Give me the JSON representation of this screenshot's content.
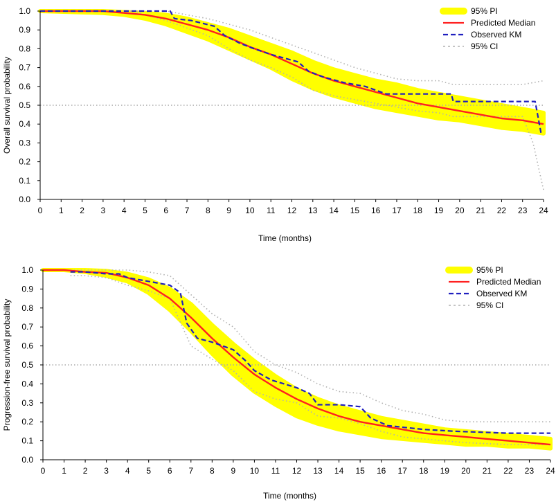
{
  "chart_data": [
    {
      "type": "line",
      "id": "os",
      "xlabel": "Time (months)",
      "ylabel": "Overall survival probability",
      "xlim": [
        0,
        24
      ],
      "ylim": [
        0,
        1
      ],
      "xticks": [
        "0",
        "1",
        "2",
        "3",
        "4",
        "5",
        "6",
        "7",
        "8",
        "9",
        "10",
        "11",
        "12",
        "13",
        "14",
        "15",
        "16",
        "17",
        "18",
        "19",
        "20",
        "21",
        "22",
        "23",
        "24"
      ],
      "yticks": [
        "0.0",
        "0.1",
        "0.2",
        "0.3",
        "0.4",
        "0.5",
        "0.6",
        "0.7",
        "0.8",
        "0.9",
        "1.0"
      ],
      "reference_line_y": 0.5,
      "legend": [
        "95% PI",
        "Predicted Median",
        "Observed KM",
        "95% CI"
      ],
      "colors": {
        "pi": "#ffff00",
        "median": "#ff2020",
        "km": "#1f1fbf",
        "ci": "#b0b0b0",
        "ref": "#a8a8a8"
      },
      "series": [
        {
          "name": "95% PI",
          "x": [
            0,
            3,
            4,
            5,
            6,
            7,
            8,
            9,
            10,
            11,
            12,
            13,
            14,
            15,
            16,
            17,
            18,
            19,
            20,
            21,
            22,
            23,
            24
          ],
          "lower": [
            1.0,
            0.99,
            0.98,
            0.96,
            0.93,
            0.89,
            0.85,
            0.8,
            0.75,
            0.7,
            0.64,
            0.59,
            0.55,
            0.52,
            0.49,
            0.47,
            0.45,
            0.43,
            0.42,
            0.4,
            0.38,
            0.37,
            0.35
          ],
          "upper": [
            1.0,
            1.0,
            0.995,
            0.99,
            0.98,
            0.96,
            0.93,
            0.9,
            0.86,
            0.82,
            0.78,
            0.73,
            0.69,
            0.66,
            0.63,
            0.61,
            0.58,
            0.56,
            0.54,
            0.52,
            0.5,
            0.48,
            0.46
          ]
        },
        {
          "name": "Predicted Median",
          "x": [
            0,
            3,
            4,
            5,
            6,
            7,
            8,
            9,
            10,
            11,
            12,
            13,
            14,
            15,
            16,
            17,
            18,
            19,
            20,
            21,
            22,
            23,
            24
          ],
          "y": [
            1.0,
            1.0,
            0.99,
            0.98,
            0.96,
            0.93,
            0.9,
            0.86,
            0.81,
            0.77,
            0.72,
            0.67,
            0.63,
            0.6,
            0.57,
            0.54,
            0.51,
            0.49,
            0.47,
            0.45,
            0.43,
            0.42,
            0.4
          ]
        },
        {
          "name": "Observed KM",
          "x": [
            0,
            4.8,
            6.2,
            6.4,
            7.2,
            8.3,
            8.8,
            9.5,
            10.2,
            11,
            12.3,
            12.8,
            13.5,
            14.5,
            15.5,
            16.5,
            19.6,
            19.7,
            23.6,
            23.9
          ],
          "y": [
            1.0,
            1.0,
            1.0,
            0.96,
            0.95,
            0.92,
            0.87,
            0.83,
            0.8,
            0.77,
            0.73,
            0.68,
            0.65,
            0.62,
            0.6,
            0.56,
            0.56,
            0.52,
            0.52,
            0.34
          ]
        },
        {
          "name": "95% CI upper",
          "x": [
            0,
            4.5,
            5,
            6,
            7,
            8,
            9,
            10,
            11,
            12,
            13,
            14,
            15,
            16,
            17,
            18,
            19,
            19.7,
            21,
            23,
            24
          ],
          "y": [
            1.0,
            1.0,
            1.0,
            1.0,
            0.98,
            0.96,
            0.93,
            0.9,
            0.86,
            0.82,
            0.78,
            0.74,
            0.7,
            0.67,
            0.64,
            0.63,
            0.63,
            0.61,
            0.61,
            0.61,
            0.63
          ]
        },
        {
          "name": "95% CI lower",
          "x": [
            0,
            4.5,
            5,
            6,
            7,
            8,
            9,
            10,
            11,
            12,
            13,
            14,
            15,
            16,
            17,
            18,
            19,
            19.7,
            21,
            23,
            23.5,
            24
          ],
          "y": [
            1.0,
            1.0,
            0.98,
            0.95,
            0.91,
            0.87,
            0.8,
            0.74,
            0.7,
            0.65,
            0.58,
            0.55,
            0.53,
            0.51,
            0.49,
            0.47,
            0.46,
            0.44,
            0.44,
            0.44,
            0.3,
            0.05
          ]
        }
      ]
    },
    {
      "type": "line",
      "id": "pfs",
      "xlabel": "Time (months)",
      "ylabel": "Progression-free survival probability",
      "xlim": [
        0,
        24
      ],
      "ylim": [
        0,
        1
      ],
      "xticks": [
        "0",
        "1",
        "2",
        "3",
        "4",
        "5",
        "6",
        "7",
        "8",
        "9",
        "10",
        "11",
        "12",
        "13",
        "14",
        "15",
        "16",
        "17",
        "18",
        "19",
        "20",
        "21",
        "22",
        "23",
        "24"
      ],
      "yticks": [
        "0.0",
        "0.1",
        "0.2",
        "0.3",
        "0.4",
        "0.5",
        "0.6",
        "0.7",
        "0.8",
        "0.9",
        "1.0"
      ],
      "reference_line_y": 0.5,
      "legend": [
        "95% PI",
        "Predicted Median",
        "Observed KM",
        "95% CI"
      ],
      "colors": {
        "pi": "#ffff00",
        "median": "#ff2020",
        "km": "#1f1fbf",
        "ci": "#b0b0b0",
        "ref": "#a8a8a8"
      },
      "series": [
        {
          "name": "95% PI",
          "x": [
            0,
            1,
            2,
            3,
            4,
            5,
            6,
            7,
            8,
            9,
            10,
            11,
            12,
            13,
            14,
            15,
            16,
            17,
            18,
            19,
            20,
            21,
            22,
            23,
            24
          ],
          "lower": [
            1.0,
            1.0,
            0.99,
            0.97,
            0.94,
            0.88,
            0.79,
            0.68,
            0.56,
            0.45,
            0.36,
            0.29,
            0.23,
            0.19,
            0.16,
            0.14,
            0.12,
            0.11,
            0.1,
            0.09,
            0.08,
            0.08,
            0.07,
            0.07,
            0.06
          ],
          "upper": [
            1.0,
            1.0,
            1.0,
            0.995,
            0.98,
            0.95,
            0.9,
            0.82,
            0.71,
            0.61,
            0.52,
            0.44,
            0.37,
            0.32,
            0.28,
            0.25,
            0.22,
            0.2,
            0.18,
            0.16,
            0.15,
            0.14,
            0.13,
            0.12,
            0.11
          ]
        },
        {
          "name": "Predicted Median",
          "x": [
            0,
            1,
            2,
            3,
            4,
            5,
            6,
            7,
            8,
            9,
            10,
            11,
            12,
            13,
            14,
            15,
            16,
            17,
            18,
            19,
            20,
            21,
            22,
            23,
            24
          ],
          "y": [
            1.0,
            1.0,
            0.99,
            0.985,
            0.96,
            0.92,
            0.85,
            0.75,
            0.64,
            0.54,
            0.45,
            0.38,
            0.32,
            0.27,
            0.23,
            0.2,
            0.18,
            0.16,
            0.14,
            0.13,
            0.12,
            0.11,
            0.1,
            0.09,
            0.08
          ]
        },
        {
          "name": "Observed KM",
          "x": [
            1.3,
            2,
            3,
            3.6,
            4,
            5,
            6,
            6.5,
            6.8,
            7.3,
            8,
            9,
            9.6,
            10,
            10.8,
            12,
            12.6,
            13,
            14,
            15,
            15.5,
            16.3,
            18,
            19.5,
            22,
            24
          ],
          "y": [
            0.99,
            0.99,
            0.98,
            0.98,
            0.96,
            0.94,
            0.92,
            0.88,
            0.72,
            0.64,
            0.62,
            0.58,
            0.52,
            0.47,
            0.42,
            0.38,
            0.35,
            0.29,
            0.29,
            0.28,
            0.22,
            0.18,
            0.16,
            0.15,
            0.14,
            0.14
          ]
        },
        {
          "name": "95% CI upper",
          "x": [
            1.3,
            2,
            3,
            4,
            5,
            6,
            7,
            8,
            9,
            10,
            11,
            12,
            13,
            14,
            15,
            16,
            17,
            18,
            19,
            20,
            22,
            24
          ],
          "y": [
            1.0,
            1.0,
            1.0,
            1.0,
            0.99,
            0.97,
            0.87,
            0.77,
            0.7,
            0.57,
            0.5,
            0.46,
            0.4,
            0.36,
            0.35,
            0.3,
            0.26,
            0.24,
            0.21,
            0.2,
            0.2,
            0.2
          ]
        },
        {
          "name": "95% CI lower",
          "x": [
            1.3,
            2,
            3,
            4,
            5,
            6,
            7,
            8,
            9,
            10,
            11,
            12,
            13,
            14,
            15,
            16,
            17,
            18,
            19,
            20,
            22,
            24
          ],
          "y": [
            0.97,
            0.97,
            0.96,
            0.92,
            0.89,
            0.85,
            0.6,
            0.53,
            0.47,
            0.36,
            0.32,
            0.3,
            0.23,
            0.22,
            0.19,
            0.15,
            0.12,
            0.11,
            0.1,
            0.09,
            0.08,
            0.08
          ]
        }
      ]
    }
  ]
}
